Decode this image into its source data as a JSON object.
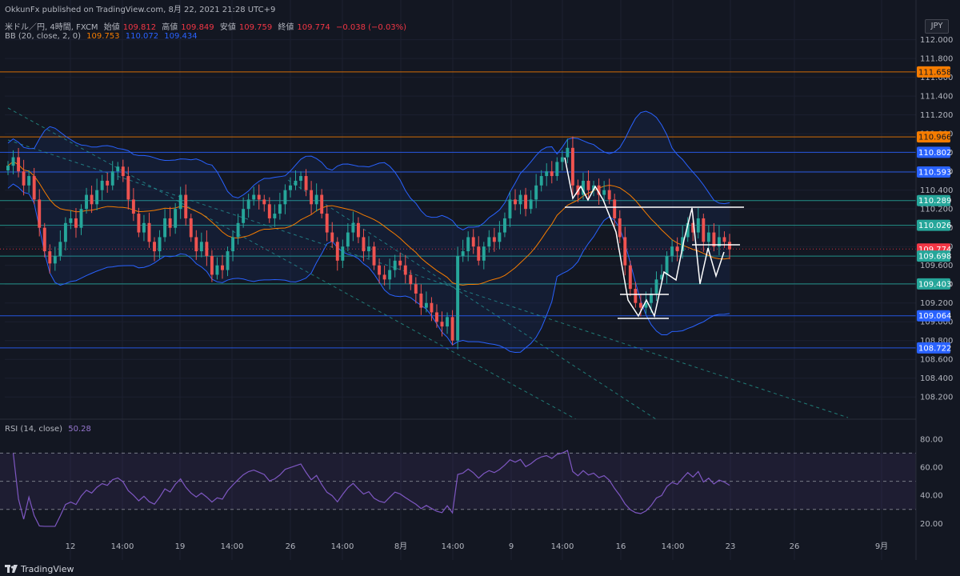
{
  "header": {
    "published": "OkkunFx published on TradingView.com, 8月 22, 2021 21:28 UTC+9",
    "symbol_line": {
      "symbol": "米ドル／円, 4時間, FXCM",
      "open_label": "始値",
      "open": "109.812",
      "high_label": "高値",
      "high": "109.849",
      "low_label": "安値",
      "low": "109.759",
      "close_label": "終値",
      "close": "109.774",
      "change": "−0.038 (−0.03%)"
    },
    "bb_line": {
      "label": "BB (20, close, 2, 0)",
      "basis": "109.753",
      "upper": "110.072",
      "lower": "109.434"
    },
    "rsi_line": {
      "label": "RSI (14, close)",
      "value": "50.28"
    }
  },
  "currency": "JPY",
  "footer": {
    "brand": "TradingView"
  },
  "colors": {
    "background": "#131722",
    "up": "#26a69a",
    "down": "#ef5350",
    "basis": "#f57c00",
    "band": "#2962ff",
    "rsi": "#7e57c2"
  },
  "chart_data": [
    {
      "type": "candlestick",
      "title": "米ドル／円, 4時間, FXCM",
      "ylim": [
        108.1,
        112.15
      ],
      "y_ticks": [
        "112.000",
        "111.800",
        "111.600",
        "111.400",
        "111.200",
        "111.000",
        "110.800",
        "110.600",
        "110.400",
        "110.200",
        "110.000",
        "109.800",
        "109.600",
        "109.400",
        "109.200",
        "109.000",
        "108.800",
        "108.600",
        "108.400",
        "108.200"
      ],
      "x_ticks": [
        "12",
        "14:00",
        "19",
        "14:00",
        "26",
        "14:00",
        "8月",
        "14:00",
        "9",
        "14:00",
        "16",
        "14:00",
        "23",
        "26",
        "9月"
      ],
      "price_levels": [
        {
          "value": "111.658",
          "color": "#f57c00"
        },
        {
          "value": "110.966",
          "color": "#f57c00"
        },
        {
          "value": "110.802",
          "color": "#2962ff"
        },
        {
          "value": "110.593",
          "color": "#2962ff"
        },
        {
          "value": "110.289",
          "color": "#26a69a"
        },
        {
          "value": "110.026",
          "color": "#26a69a"
        },
        {
          "value": "109.774",
          "color": "#f23645"
        },
        {
          "value": "109.698",
          "color": "#26a69a"
        },
        {
          "value": "109.403",
          "color": "#26a69a"
        },
        {
          "value": "109.064",
          "color": "#2962ff"
        },
        {
          "value": "108.722",
          "color": "#2962ff"
        }
      ],
      "close_series": [
        110.66,
        110.75,
        110.6,
        110.45,
        110.55,
        110.3,
        110.0,
        109.75,
        109.62,
        109.7,
        109.85,
        110.05,
        110.1,
        110.0,
        110.2,
        110.35,
        110.25,
        110.4,
        110.5,
        110.45,
        110.6,
        110.65,
        110.55,
        110.3,
        110.15,
        109.95,
        110.05,
        109.85,
        109.75,
        109.9,
        110.1,
        110.0,
        110.2,
        110.35,
        110.1,
        109.9,
        109.75,
        109.85,
        109.7,
        109.5,
        109.6,
        109.55,
        109.75,
        109.9,
        110.05,
        110.2,
        110.3,
        110.35,
        110.3,
        110.25,
        110.1,
        110.15,
        110.25,
        110.4,
        110.45,
        110.5,
        110.55,
        110.4,
        110.25,
        110.35,
        110.15,
        109.95,
        109.85,
        109.65,
        109.8,
        109.95,
        110.05,
        109.9,
        109.75,
        109.8,
        109.6,
        109.5,
        109.45,
        109.55,
        109.65,
        109.6,
        109.5,
        109.4,
        109.3,
        109.15,
        109.2,
        109.1,
        109.0,
        108.95,
        109.05,
        108.8,
        109.7,
        109.75,
        109.9,
        109.8,
        109.65,
        109.8,
        109.9,
        109.85,
        109.95,
        110.1,
        110.3,
        110.25,
        110.35,
        110.2,
        110.3,
        110.45,
        110.55,
        110.6,
        110.55,
        110.7,
        110.75,
        110.85,
        110.45,
        110.35,
        110.5,
        110.4,
        110.45,
        110.35,
        110.4,
        110.3,
        110.1,
        109.9,
        109.6,
        109.35,
        109.2,
        109.15,
        109.2,
        109.3,
        109.45,
        109.5,
        109.7,
        109.8,
        109.75,
        109.9,
        110.05,
        109.95,
        110.1,
        109.85,
        109.95,
        109.8,
        109.9,
        109.85,
        109.77
      ],
      "bollinger": {
        "period": 20,
        "multiplier": 2,
        "basis": "109.753",
        "upper": "110.072",
        "lower": "109.434"
      }
    },
    {
      "type": "line",
      "title": "RSI (14, close)",
      "ylim": [
        10,
        85
      ],
      "y_ticks": [
        "80.00",
        "60.00",
        "40.00",
        "20.00"
      ],
      "levels": [
        70,
        50,
        30
      ],
      "last": "50.28"
    }
  ]
}
